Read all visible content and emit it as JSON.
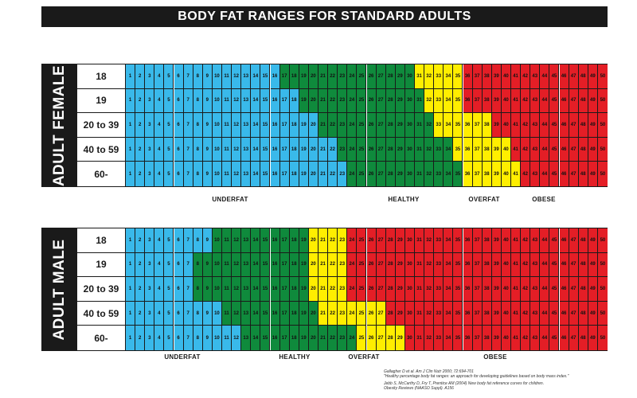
{
  "title": "BODY FAT RANGES FOR STANDARD ADULTS",
  "colors": {
    "underfat": "#39b9ea",
    "healthy": "#0f8a3c",
    "overfat": "#ffee00",
    "obese": "#e41e26"
  },
  "chart_data": {
    "type": "table",
    "title": "BODY FAT RANGES FOR STANDARD ADULTS",
    "values": [
      1,
      2,
      3,
      4,
      5,
      6,
      7,
      8,
      9,
      10,
      11,
      12,
      13,
      14,
      15,
      16,
      17,
      18,
      19,
      20,
      21,
      22,
      23,
      24,
      25,
      26,
      27,
      28,
      29,
      30,
      31,
      32,
      33,
      34,
      35,
      36,
      37,
      38,
      39,
      40,
      41,
      42,
      43,
      44,
      45,
      46,
      47,
      48,
      49,
      50
    ],
    "panels": [
      {
        "name": "ADULT FEMALE",
        "rows": [
          {
            "label": "18",
            "underfat_max": 16,
            "healthy_max": 30,
            "overfat_max": 35
          },
          {
            "label": "19",
            "underfat_max": 18,
            "healthy_max": 31,
            "overfat_max": 35
          },
          {
            "label": "20 to 39",
            "underfat_max": 20,
            "healthy_max": 32,
            "overfat_max": 38
          },
          {
            "label": "40 to 59",
            "underfat_max": 22,
            "healthy_max": 34,
            "overfat_max": 40
          },
          {
            "label": "60-",
            "underfat_max": 23,
            "healthy_max": 35,
            "overfat_max": 41
          }
        ],
        "category_labels": [
          "UNDERFAT",
          "HEALTHY",
          "OVERFAT",
          "OBESE"
        ]
      },
      {
        "name": "ADULT MALE",
        "rows": [
          {
            "label": "18",
            "underfat_max": 9,
            "healthy_max": 19,
            "overfat_max": 23
          },
          {
            "label": "19",
            "underfat_max": 7,
            "healthy_max": 19,
            "overfat_max": 23
          },
          {
            "label": "20 to 39",
            "underfat_max": 7,
            "healthy_max": 19,
            "overfat_max": 23
          },
          {
            "label": "40 to 59",
            "underfat_max": 10,
            "healthy_max": 20,
            "overfat_max": 27
          },
          {
            "label": "60-",
            "underfat_max": 12,
            "healthy_max": 24,
            "overfat_max": 29
          }
        ],
        "category_labels": [
          "UNDERFAT",
          "HEALTHY",
          "OVERFAT",
          "OBESE"
        ]
      }
    ]
  },
  "references": [
    "Gallagher D et al. Am J Clin Nutr 2000; 72:694-701",
    "\"Healthy percentage body fat ranges: an approach for developing guidelines based on body mass index.\"",
    "Jebb S, McCarthy D, Fry T, Prentice AM (2004) New body fat reference curves for children.",
    "Obesity Reviews (NAASO Suppl). A156"
  ]
}
